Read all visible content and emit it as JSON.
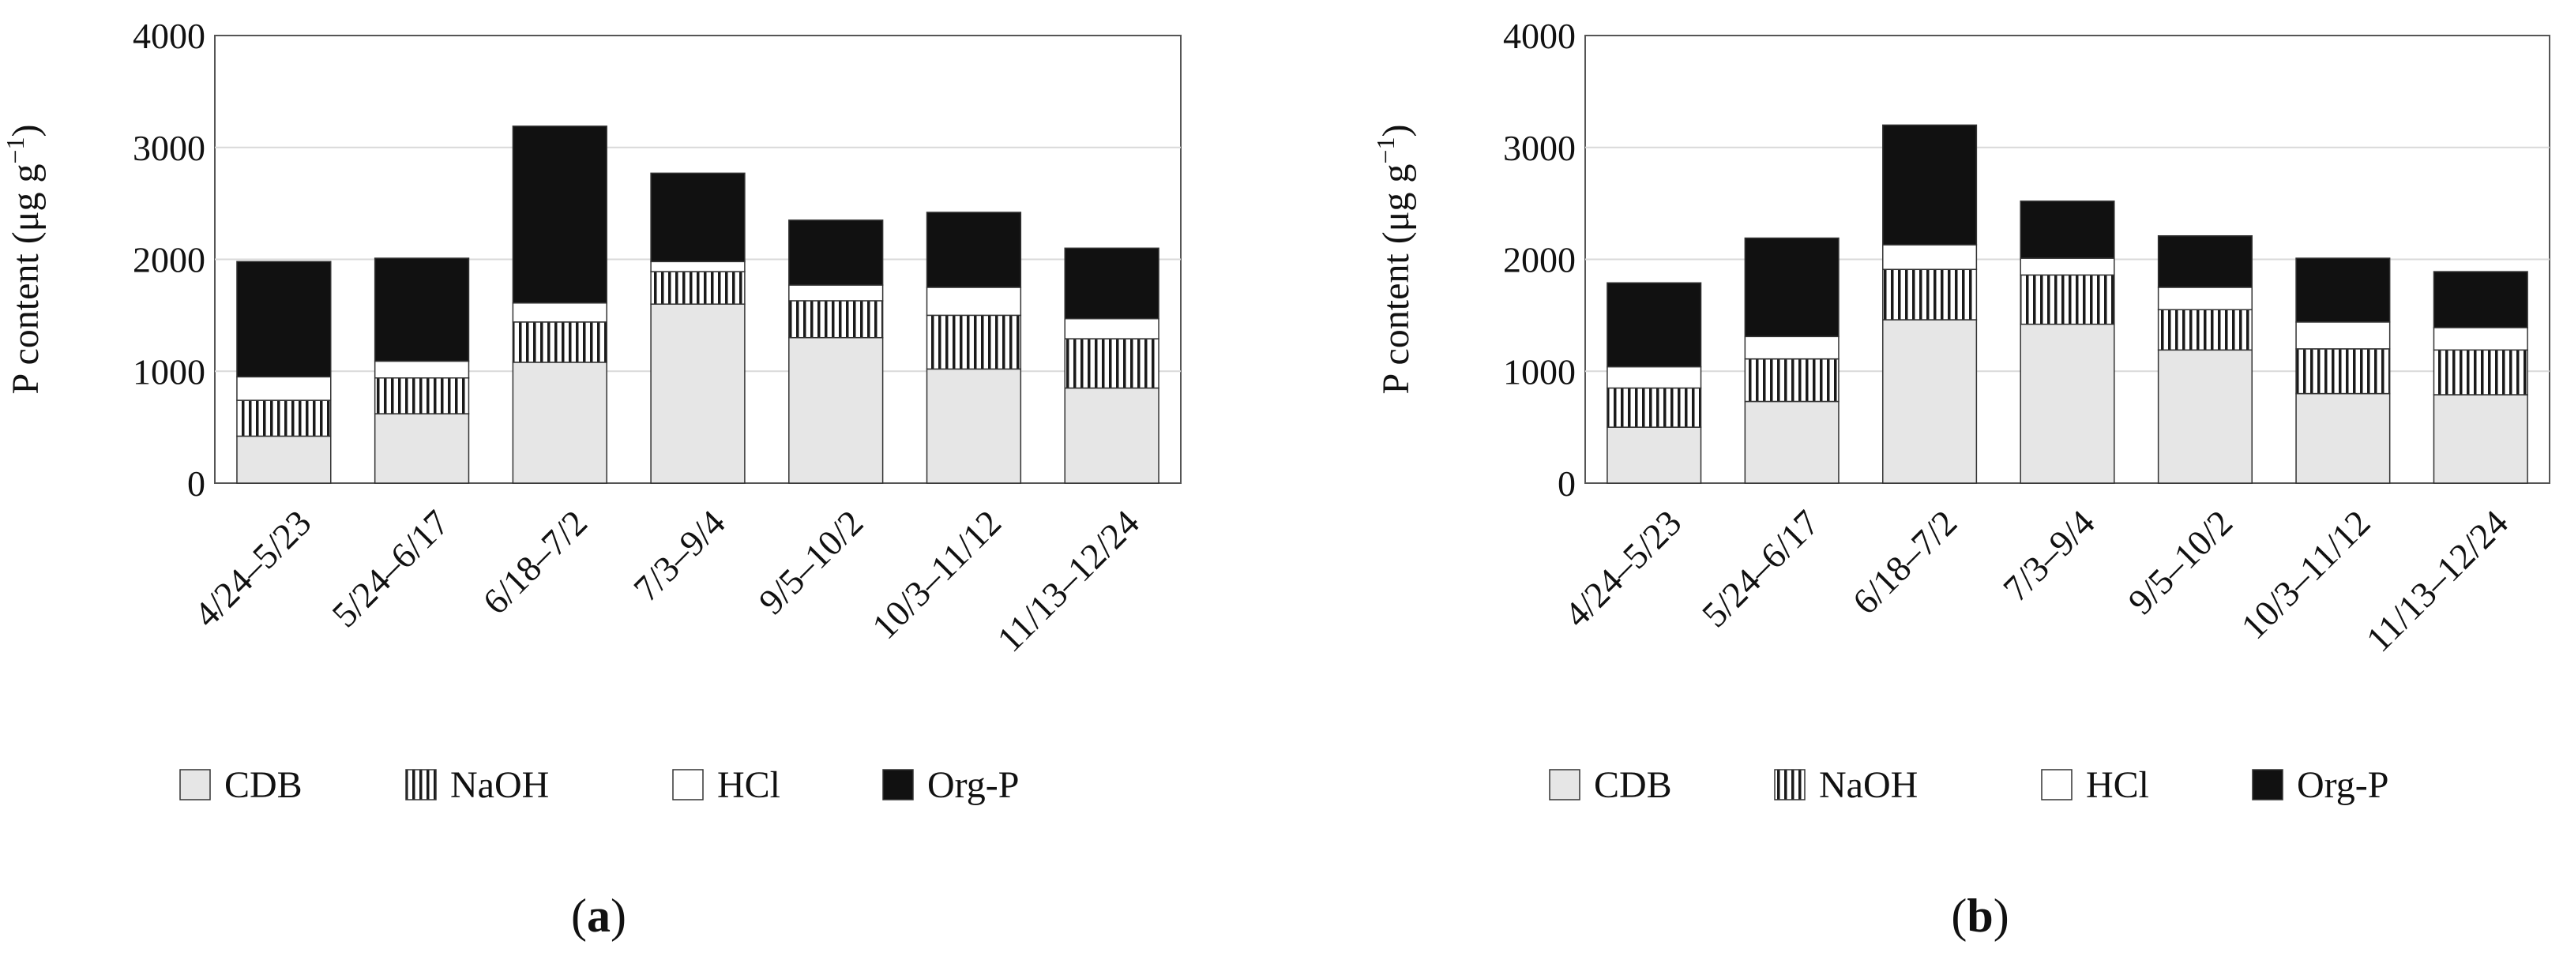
{
  "colors": {
    "CDB": "#e6e6e6",
    "NaOH_bg": "#ffffff",
    "NaOH_stripe": "#1a1a1a",
    "HCl": "#ffffff",
    "Org-P": "#111111",
    "gridline": "#d9d9d9",
    "axis": "#555555"
  },
  "chart_data": [
    {
      "type": "bar",
      "stacked": true,
      "panel_label": {
        "open": "(",
        "letter": "a",
        "close": ")"
      },
      "ylabel": "P content (μg g",
      "ylabel_sup": "−1",
      "ylabel_end": ")",
      "ylim": [
        0,
        4000
      ],
      "yticks": [
        "0",
        "1000",
        "2000",
        "3000",
        "4000"
      ],
      "grid": true,
      "legend_position": "bottom",
      "categories": [
        "4/24–5/23",
        "5/24–6/17",
        "6/18–7/2",
        "7/3–9/4",
        "9/5–10/2",
        "10/3–11/12",
        "11/13–12/24"
      ],
      "series": [
        {
          "name": "CDB",
          "values": [
            420,
            620,
            1080,
            1600,
            1300,
            1020,
            850
          ]
        },
        {
          "name": "NaOH",
          "values": [
            320,
            320,
            360,
            290,
            330,
            480,
            440
          ]
        },
        {
          "name": "HCl",
          "values": [
            210,
            150,
            170,
            90,
            140,
            250,
            180
          ]
        },
        {
          "name": "Org-P",
          "values": [
            1030,
            920,
            1580,
            790,
            580,
            670,
            630
          ]
        }
      ]
    },
    {
      "type": "bar",
      "stacked": true,
      "panel_label": {
        "open": "(",
        "letter": "b",
        "close": ")"
      },
      "ylabel": "P content (μg g",
      "ylabel_sup": "−1",
      "ylabel_end": ")",
      "ylim": [
        0,
        4000
      ],
      "yticks": [
        "0",
        "1000",
        "2000",
        "3000",
        "4000"
      ],
      "grid": true,
      "legend_position": "bottom",
      "categories": [
        "4/24–5/23",
        "5/24–6/17",
        "6/18–7/2",
        "7/3–9/4",
        "9/5–10/2",
        "10/3–11/12",
        "11/13–12/24"
      ],
      "series": [
        {
          "name": "CDB",
          "values": [
            500,
            730,
            1460,
            1420,
            1190,
            800,
            790
          ]
        },
        {
          "name": "NaOH",
          "values": [
            350,
            380,
            450,
            440,
            360,
            400,
            400
          ]
        },
        {
          "name": "HCl",
          "values": [
            190,
            200,
            220,
            150,
            200,
            240,
            200
          ]
        },
        {
          "name": "Org-P",
          "values": [
            750,
            880,
            1070,
            510,
            460,
            570,
            500
          ]
        }
      ]
    }
  ]
}
